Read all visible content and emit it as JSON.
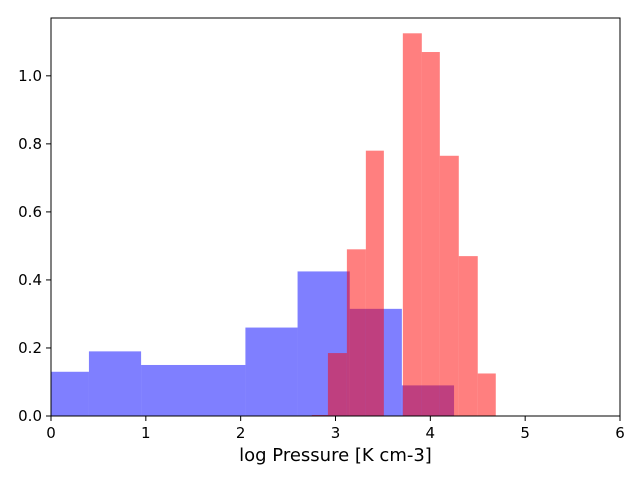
{
  "chart_data": {
    "type": "bar",
    "title": "",
    "xlabel": "log Pressure [K cm-3]",
    "ylabel": "",
    "xlim": [
      0,
      6
    ],
    "ylim": [
      0,
      1.17
    ],
    "xticks": [
      0,
      1,
      2,
      3,
      4,
      5,
      6
    ],
    "xtick_labels": [
      "0",
      "1",
      "2",
      "3",
      "4",
      "5",
      "6"
    ],
    "yticks": [
      0.0,
      0.2,
      0.4,
      0.6,
      0.8,
      1.0
    ],
    "ytick_labels": [
      "0.0",
      "0.2",
      "0.4",
      "0.6",
      "0.8",
      "1.0"
    ],
    "grid": false,
    "legend": "none",
    "series": [
      {
        "color": "#0000ff",
        "opacity": 0.5,
        "bins": [
          {
            "x0": 0.0,
            "x1": 0.4,
            "y": 0.13
          },
          {
            "x0": 0.4,
            "x1": 0.95,
            "y": 0.19
          },
          {
            "x0": 0.95,
            "x1": 2.05,
            "y": 0.15
          },
          {
            "x0": 2.05,
            "x1": 2.6,
            "y": 0.26
          },
          {
            "x0": 2.6,
            "x1": 3.15,
            "y": 0.425
          },
          {
            "x0": 3.15,
            "x1": 3.7,
            "y": 0.315
          },
          {
            "x0": 3.7,
            "x1": 4.25,
            "y": 0.09
          }
        ]
      },
      {
        "color": "#ff0000",
        "opacity": 0.5,
        "bins": [
          {
            "x0": 2.75,
            "x1": 2.92,
            "y": 0.003
          },
          {
            "x0": 2.92,
            "x1": 3.12,
            "y": 0.185
          },
          {
            "x0": 3.12,
            "x1": 3.32,
            "y": 0.49
          },
          {
            "x0": 3.32,
            "x1": 3.51,
            "y": 0.78
          },
          {
            "x0": 3.51,
            "x1": 3.71,
            "y": 0.0
          },
          {
            "x0": 3.71,
            "x1": 3.91,
            "y": 1.125
          },
          {
            "x0": 3.91,
            "x1": 4.1,
            "y": 1.07
          },
          {
            "x0": 4.1,
            "x1": 4.3,
            "y": 0.765
          },
          {
            "x0": 4.3,
            "x1": 4.5,
            "y": 0.47
          },
          {
            "x0": 4.5,
            "x1": 4.69,
            "y": 0.125
          }
        ]
      }
    ]
  }
}
